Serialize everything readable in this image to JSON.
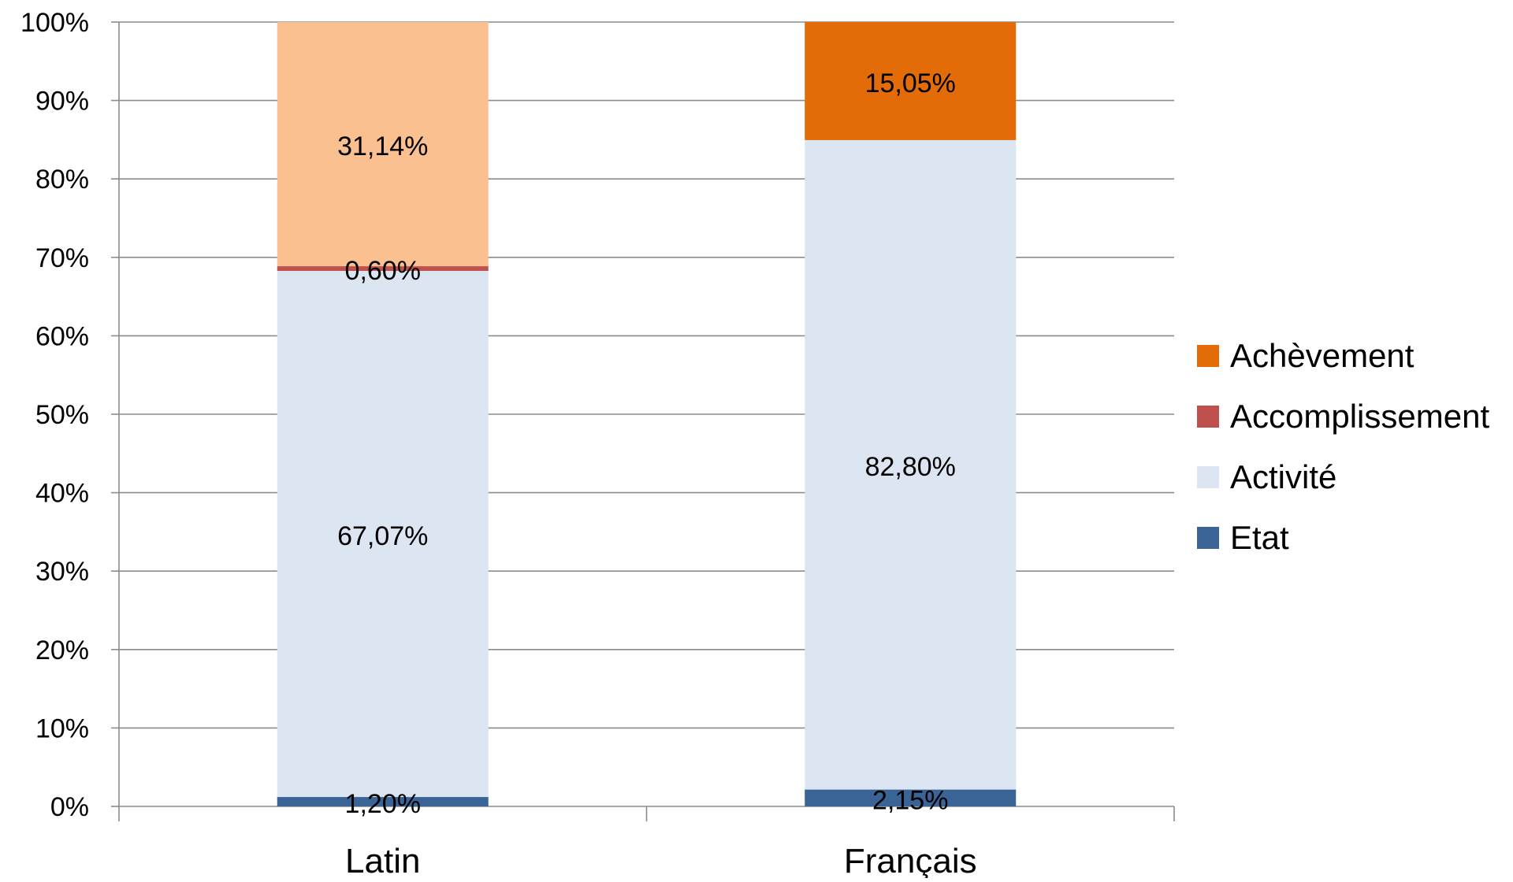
{
  "chart_data": {
    "type": "bar",
    "stacked": true,
    "categories": [
      "Latin",
      "Français"
    ],
    "series": [
      {
        "name": "Etat",
        "values": [
          1.2,
          2.15
        ],
        "labels": [
          "1,20%",
          "2,15%"
        ],
        "color": "#3b6496"
      },
      {
        "name": "Activité",
        "values": [
          67.07,
          82.8
        ],
        "labels": [
          "67,07%",
          "82,80%"
        ],
        "color": "#dce6f2"
      },
      {
        "name": "Accomplissement",
        "values": [
          0.6,
          0
        ],
        "labels": [
          "0,60%",
          ""
        ],
        "color": "#c0504d"
      },
      {
        "name": "Achèvement",
        "values": [
          31.14,
          15.05
        ],
        "labels": [
          "31,14%",
          "15,05%"
        ],
        "colors": [
          "#fac090",
          "#e36c09"
        ]
      }
    ],
    "yticks": [
      "0%",
      "10%",
      "20%",
      "30%",
      "40%",
      "50%",
      "60%",
      "70%",
      "80%",
      "90%",
      "100%"
    ],
    "ylim": [
      0,
      100
    ],
    "grid": true,
    "legend": {
      "position": "right",
      "entries": [
        {
          "name": "Achèvement",
          "color": "#e36c09"
        },
        {
          "name": "Accomplissement",
          "color": "#c0504d"
        },
        {
          "name": "Activité",
          "color": "#dce6f2"
        },
        {
          "name": "Etat",
          "color": "#3b6496"
        }
      ]
    },
    "title": "",
    "xlabel": "",
    "ylabel": ""
  }
}
